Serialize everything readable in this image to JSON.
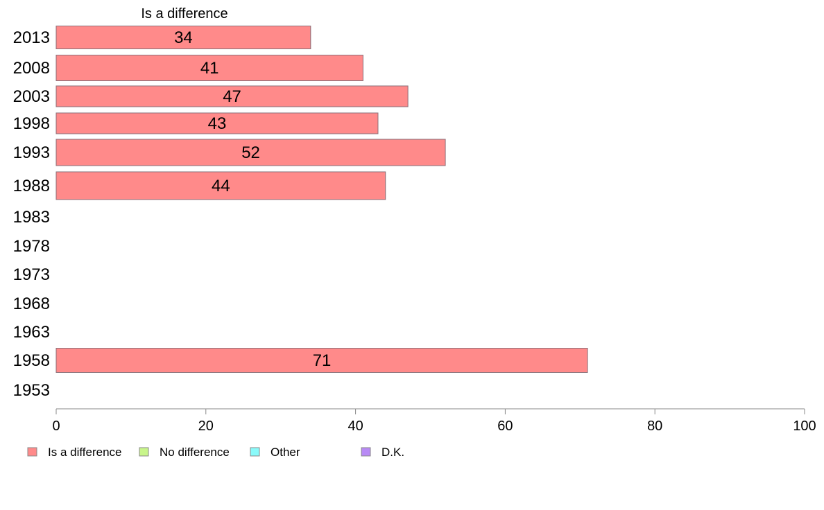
{
  "chart_data": {
    "type": "bar",
    "orientation": "horizontal",
    "title": "",
    "series_heading": "Is a difference",
    "xlabel": "",
    "ylabel": "",
    "xlim": [
      0,
      100
    ],
    "x_ticks": [
      0,
      20,
      40,
      60,
      80,
      100
    ],
    "grid": false,
    "legend_position": "bottom-left",
    "categories": [
      "2013",
      "2008",
      "2003",
      "1998",
      "1993",
      "1988",
      "1983",
      "1978",
      "1973",
      "1968",
      "1963",
      "1958",
      "1953"
    ],
    "series": [
      {
        "name": "Is a difference",
        "color": "#ff8a8a",
        "values": [
          34,
          41,
          47,
          43,
          52,
          44,
          null,
          null,
          null,
          null,
          null,
          71,
          null
        ]
      }
    ],
    "legend": [
      {
        "label": "Is a difference",
        "color": "#ff8a8a"
      },
      {
        "label": "No difference",
        "color": "#c8f58a"
      },
      {
        "label": "Other",
        "color": "#8afafa"
      },
      {
        "label": "D.K.",
        "color": "#b88af5"
      }
    ]
  }
}
